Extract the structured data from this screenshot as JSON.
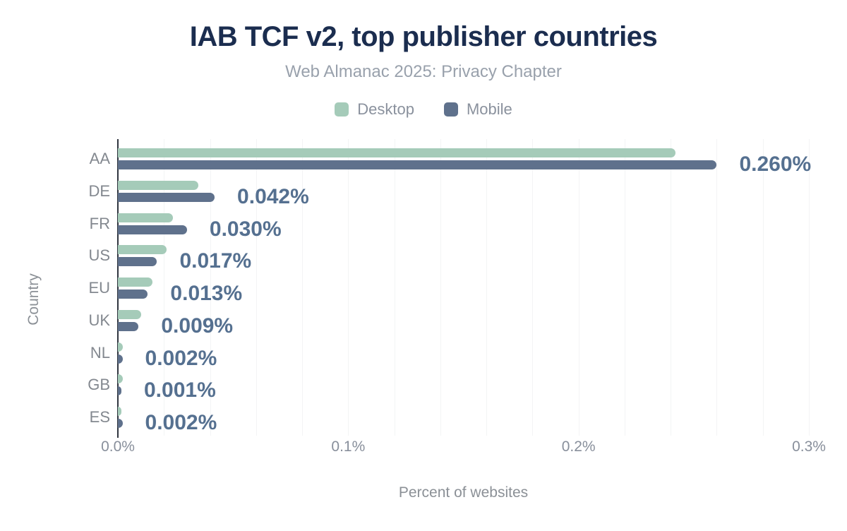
{
  "header": {
    "title": "IAB TCF v2, top publisher countries",
    "subtitle": "Web Almanac 2025: Privacy Chapter"
  },
  "legend": [
    {
      "label": "Desktop",
      "color": "#a5cbb9"
    },
    {
      "label": "Mobile",
      "color": "#5f718c"
    }
  ],
  "chart_data": {
    "type": "bar",
    "orientation": "horizontal",
    "title": "IAB TCF v2, top publisher countries",
    "subtitle": "Web Almanac 2025: Privacy Chapter",
    "xlabel": "Percent of websites",
    "ylabel": "Country",
    "categories": [
      "AA",
      "DE",
      "FR",
      "US",
      "EU",
      "UK",
      "NL",
      "GB",
      "ES"
    ],
    "series": [
      {
        "name": "Desktop",
        "color": "#a5cbb9",
        "values": [
          0.242,
          0.035,
          0.024,
          0.021,
          0.015,
          0.01,
          0.002,
          0.002,
          0.001
        ]
      },
      {
        "name": "Mobile",
        "color": "#5f718c",
        "values": [
          0.26,
          0.042,
          0.03,
          0.017,
          0.013,
          0.009,
          0.002,
          0.001,
          0.002
        ]
      }
    ],
    "value_labels": [
      "0.260%",
      "0.042%",
      "0.030%",
      "0.017%",
      "0.013%",
      "0.009%",
      "0.002%",
      "0.001%",
      "0.002%"
    ],
    "value_label_series": "Mobile",
    "x_ticks": [
      "0.0%",
      "0.1%",
      "0.2%",
      "0.3%"
    ],
    "xlim": [
      0,
      0.3
    ],
    "grid": "vertical gridlines every 0.02%",
    "legend_position": "top center"
  },
  "colors": {
    "title": "#1b2d4f",
    "subtitle": "#99a1ac",
    "axis_text": "#888f9b",
    "category_text": "#83888f",
    "value_label": "#557090",
    "desktop_bar": "#a5cbb9",
    "mobile_bar": "#5f718c",
    "axis_line": "#30353f",
    "gridline": "#f3f4f5",
    "background": "#ffffff"
  }
}
